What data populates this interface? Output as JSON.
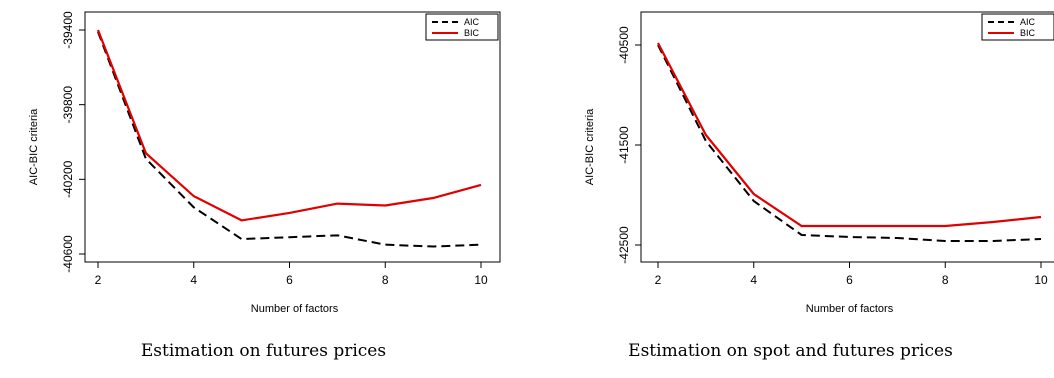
{
  "chart_data": [
    {
      "type": "line",
      "caption": "Estimation on futures prices",
      "xlabel": "Number of factors",
      "ylabel": "AIC-BIC criteria",
      "xlim": [
        2,
        10
      ],
      "ylim": [
        -40600,
        -39400
      ],
      "xticks": [
        2,
        4,
        6,
        8,
        10
      ],
      "yticks": [
        -39400,
        -39800,
        -40200,
        -40600
      ],
      "x": [
        2,
        3,
        4,
        5,
        6,
        7,
        8,
        9,
        10
      ],
      "series": [
        {
          "name": "AIC",
          "color": "#000000",
          "dash": "dashed",
          "values": [
            -39410,
            -40090,
            -40350,
            -40520,
            -40510,
            -40500,
            -40550,
            -40560,
            -40550
          ]
        },
        {
          "name": "BIC",
          "color": "#e00000",
          "dash": "solid",
          "values": [
            -39400,
            -40060,
            -40290,
            -40420,
            -40380,
            -40330,
            -40340,
            -40300,
            -40230
          ]
        }
      ],
      "legend_position": "top-right",
      "grid": false
    },
    {
      "type": "line",
      "caption": "Estimation on spot and futures prices",
      "xlabel": "Number of factors",
      "ylabel": "AIC-BIC criteria",
      "xlim": [
        2,
        10
      ],
      "ylim": [
        -42500,
        -40500
      ],
      "xticks": [
        2,
        4,
        6,
        8,
        10
      ],
      "yticks": [
        -40500,
        -41500,
        -42500
      ],
      "x": [
        2,
        3,
        4,
        5,
        6,
        7,
        8,
        9,
        10
      ],
      "series": [
        {
          "name": "AIC",
          "color": "#000000",
          "dash": "dashed",
          "values": [
            -40500,
            -41460,
            -42060,
            -42400,
            -42420,
            -42430,
            -42460,
            -42460,
            -42440
          ]
        },
        {
          "name": "BIC",
          "color": "#e00000",
          "dash": "solid",
          "values": [
            -40480,
            -41400,
            -41990,
            -42310,
            -42310,
            -42310,
            -42310,
            -42270,
            -42220
          ]
        }
      ],
      "legend_position": "top-right",
      "grid": false
    }
  ]
}
